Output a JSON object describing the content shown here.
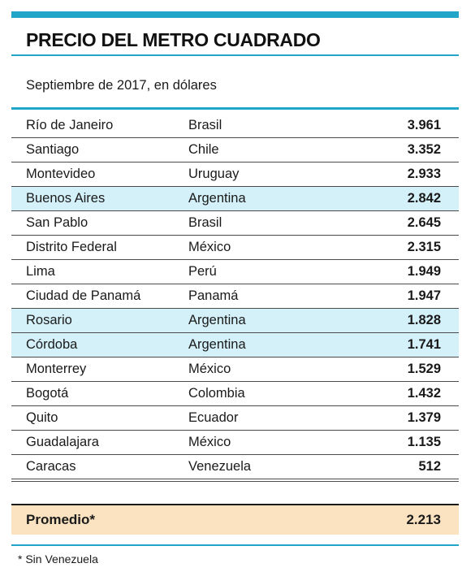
{
  "header": {
    "title": "PRECIO DEL METRO CUADRADO",
    "subtitle": "Septiembre de 2017, en dólares"
  },
  "colors": {
    "accent": "#21a6c9",
    "highlight_row": "#d4f1f9",
    "average_row": "#fbe2c0"
  },
  "chart_data": {
    "type": "table",
    "title": "PRECIO DEL METRO CUADRADO",
    "subtitle": "Septiembre de 2017, en dólares",
    "rows": [
      {
        "city": "Río de Janeiro",
        "country": "Brasil",
        "value": "3.961",
        "highlight": false
      },
      {
        "city": "Santiago",
        "country": "Chile",
        "value": "3.352",
        "highlight": false
      },
      {
        "city": "Montevideo",
        "country": "Uruguay",
        "value": "2.933",
        "highlight": false
      },
      {
        "city": "Buenos Aires",
        "country": "Argentina",
        "value": "2.842",
        "highlight": true
      },
      {
        "city": "San Pablo",
        "country": "Brasil",
        "value": "2.645",
        "highlight": false
      },
      {
        "city": "Distrito Federal",
        "country": "México",
        "value": "2.315",
        "highlight": false
      },
      {
        "city": "Lima",
        "country": "Perú",
        "value": "1.949",
        "highlight": false
      },
      {
        "city": "Ciudad de Panamá",
        "country": "Panamá",
        "value": "1.947",
        "highlight": false
      },
      {
        "city": "Rosario",
        "country": "Argentina",
        "value": "1.828",
        "highlight": true
      },
      {
        "city": "Córdoba",
        "country": "Argentina",
        "value": "1.741",
        "highlight": true
      },
      {
        "city": "Monterrey",
        "country": "México",
        "value": "1.529",
        "highlight": false
      },
      {
        "city": "Bogotá",
        "country": "Colombia",
        "value": "1.432",
        "highlight": false
      },
      {
        "city": "Quito",
        "country": "Ecuador",
        "value": "1.379",
        "highlight": false
      },
      {
        "city": "Guadalajara",
        "country": "México",
        "value": "1.135",
        "highlight": false
      },
      {
        "city": "Caracas",
        "country": "Venezuela",
        "value": "512",
        "highlight": false
      }
    ],
    "average": {
      "label": "Promedio*",
      "value": "2.213"
    }
  },
  "footnote": "* Sin Venezuela"
}
